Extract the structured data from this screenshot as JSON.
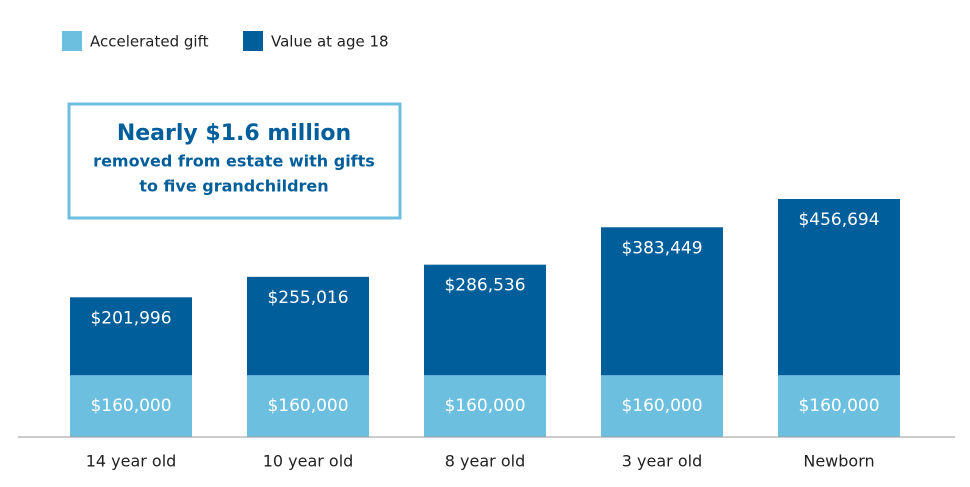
{
  "chart_data": {
    "type": "stacked_bar",
    "categories": [
      "14 year old",
      "10 year old",
      "8 year old",
      "3 year old",
      "Newborn"
    ],
    "series": [
      {
        "name": "Accelerated gift",
        "color": "#6dbfdf",
        "values": [
          160000,
          160000,
          160000,
          160000,
          160000
        ],
        "value_labels": [
          "$160,000",
          "$160,000",
          "$160,000",
          "$160,000",
          "$160,000"
        ]
      },
      {
        "name": "Value at age 18",
        "color": "#005e9b",
        "values": [
          201996,
          255016,
          286536,
          383449,
          456694
        ],
        "value_labels": [
          "$201,996",
          "$255,016",
          "$286,536",
          "$383,449",
          "$456,694"
        ]
      }
    ],
    "annotation": {
      "title": "Nearly $1.6 million",
      "lines": [
        "removed from estate with gifts",
        "to five grandchildren"
      ]
    }
  }
}
